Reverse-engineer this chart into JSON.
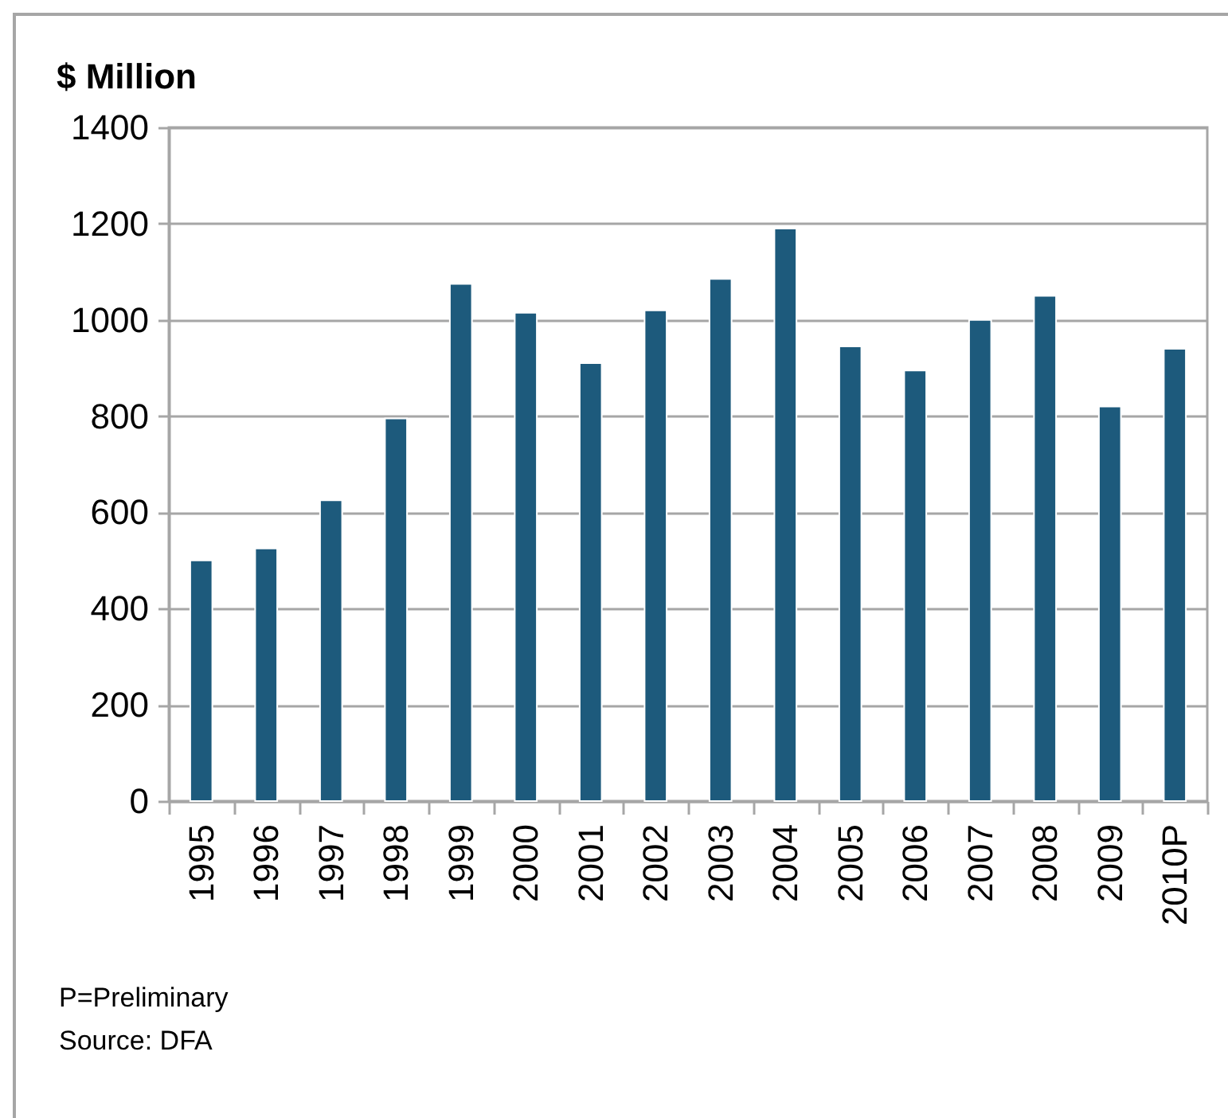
{
  "chart_data": {
    "type": "bar",
    "ylabel": "$ Million",
    "categories": [
      "1995",
      "1996",
      "1997",
      "1998",
      "1999",
      "2000",
      "2001",
      "2002",
      "2003",
      "2004",
      "2005",
      "2006",
      "2007",
      "2008",
      "2009",
      "2010P"
    ],
    "values": [
      500,
      525,
      625,
      795,
      1075,
      1015,
      910,
      1020,
      1085,
      1190,
      945,
      895,
      1000,
      1050,
      820,
      940
    ],
    "color": "#1d5a7c",
    "ylim": [
      0,
      1400
    ],
    "yticks": [
      0,
      200,
      400,
      600,
      800,
      1000,
      1200,
      1400
    ],
    "grid": "y",
    "annotations": [
      "P=Preliminary",
      "Source: DFA"
    ]
  }
}
